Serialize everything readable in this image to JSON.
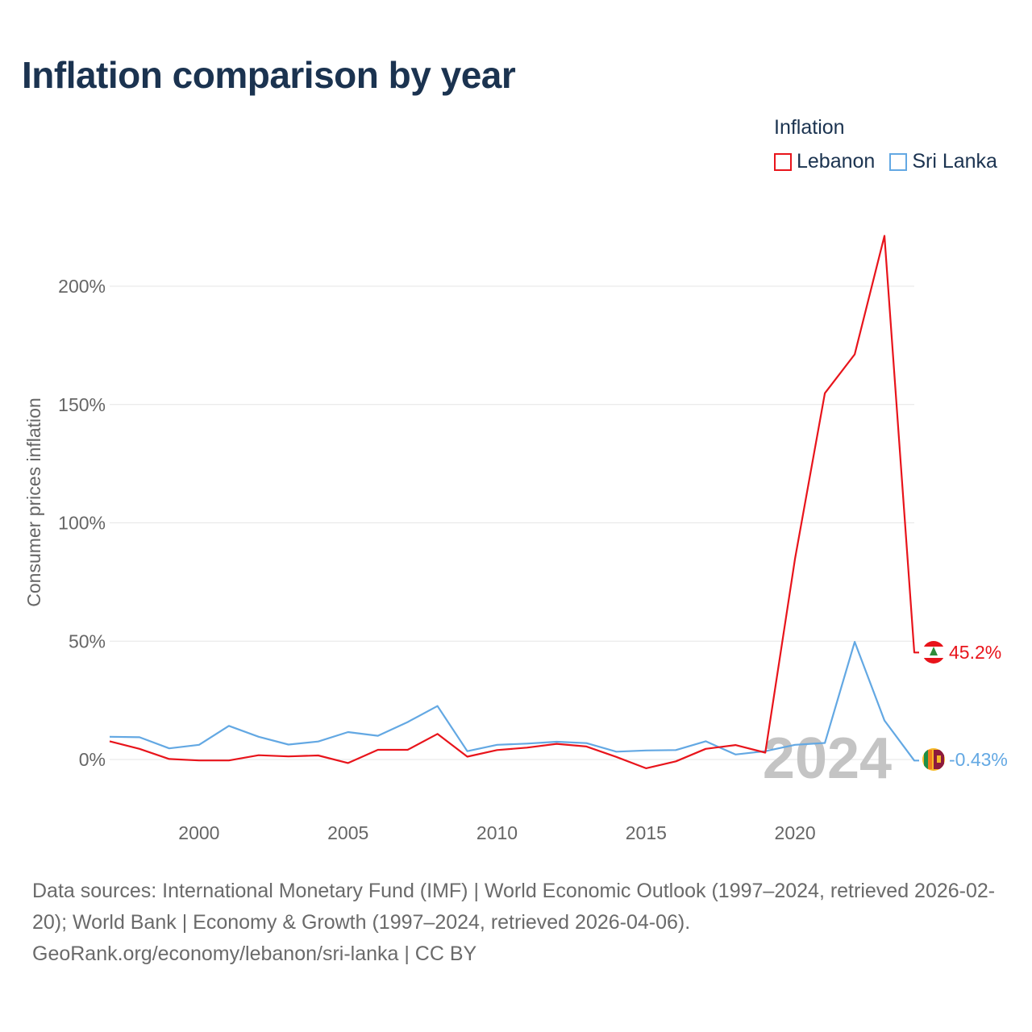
{
  "title": "Inflation comparison by year",
  "legend": {
    "title": "Inflation",
    "items": [
      {
        "name": "Lebanon",
        "color": "#e8141b"
      },
      {
        "name": "Sri Lanka",
        "color": "#63a8e3"
      }
    ]
  },
  "year_watermark": "2024",
  "footer": {
    "sources": "Data sources: International Monetary Fund (IMF) | World Economic Outlook (1997–2024, retrieved 2026-02-20); World Bank | Economy & Growth (1997–2024, retrieved 2026-04-06).",
    "credit": "GeoRank.org/economy/lebanon/sri-lanka | CC BY"
  },
  "chart_data": {
    "type": "line",
    "title": "Inflation comparison by year",
    "ylabel": "Consumer prices inflation",
    "xlabel": "",
    "x": [
      1997,
      1998,
      1999,
      2000,
      2001,
      2002,
      2003,
      2004,
      2005,
      2006,
      2007,
      2008,
      2009,
      2010,
      2011,
      2012,
      2013,
      2014,
      2015,
      2016,
      2017,
      2018,
      2019,
      2020,
      2021,
      2022,
      2023,
      2024
    ],
    "xlim": [
      1997,
      2024
    ],
    "ylim": [
      -15,
      225
    ],
    "x_ticks": [
      2000,
      2005,
      2010,
      2015,
      2020
    ],
    "y_ticks": [
      0,
      50,
      100,
      150,
      200
    ],
    "y_tick_labels": [
      "0%",
      "50%",
      "100%",
      "150%",
      "200%"
    ],
    "grid": true,
    "legend_position": "top-right",
    "series": [
      {
        "name": "Lebanon",
        "color": "#e8141b",
        "values": [
          7.7,
          4.5,
          0.2,
          -0.4,
          -0.4,
          1.8,
          1.3,
          1.7,
          -1.5,
          4.1,
          4.1,
          10.8,
          1.2,
          4.0,
          5.0,
          6.6,
          5.5,
          1.1,
          -3.7,
          -0.8,
          4.5,
          6.1,
          2.9,
          84.9,
          154.8,
          171.2,
          221.3,
          45.2
        ],
        "end_label": "45.2%"
      },
      {
        "name": "Sri Lanka",
        "color": "#63a8e3",
        "values": [
          9.6,
          9.4,
          4.7,
          6.2,
          14.2,
          9.6,
          6.3,
          7.6,
          11.6,
          10.0,
          15.8,
          22.6,
          3.5,
          6.2,
          6.7,
          7.5,
          6.9,
          3.3,
          3.8,
          4.0,
          7.7,
          2.1,
          3.5,
          6.2,
          7.0,
          49.7,
          16.5,
          -0.43
        ],
        "end_label": "-0.43%"
      }
    ]
  }
}
